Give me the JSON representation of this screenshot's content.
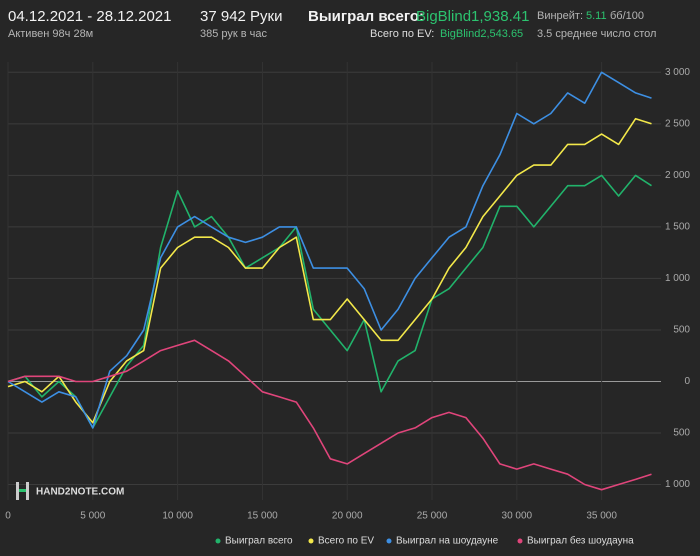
{
  "header": {
    "date_range": "04.12.2021 - 28.12.2021",
    "active": "Активен 98ч 28м",
    "hands": "37 942 Руки",
    "hands_per_hour": "385 рук в час",
    "won_total_label": "Выиграл всего:",
    "won_total_value": "BigBlind1,938.41",
    "ev_total_label": "Всего по EV:",
    "ev_total_value": "BigBlind2,543.65",
    "winrate_label": "Винрейт:",
    "winrate_value": "5.11",
    "winrate_unit": "бб/100",
    "tables": "3.5 среднее число стол"
  },
  "logo": "HAND2NOTE.COM",
  "chart_data": {
    "type": "line",
    "x": [
      0,
      1000,
      2000,
      3000,
      4000,
      5000,
      6000,
      7000,
      8000,
      9000,
      10000,
      11000,
      12000,
      13000,
      14000,
      15000,
      16000,
      17000,
      18000,
      19000,
      20000,
      21000,
      22000,
      23000,
      24000,
      25000,
      26000,
      27000,
      28000,
      29000,
      30000,
      31000,
      32000,
      33000,
      34000,
      35000,
      36000,
      37000,
      37942
    ],
    "series": [
      {
        "name": "Выиграл всего",
        "color": "#21b36b",
        "values": [
          0,
          50,
          -150,
          0,
          -150,
          -450,
          -150,
          150,
          350,
          1300,
          1850,
          1500,
          1600,
          1400,
          1100,
          1200,
          1300,
          1500,
          700,
          500,
          300,
          600,
          -100,
          200,
          300,
          800,
          900,
          1100,
          1300,
          1700,
          1700,
          1500,
          1700,
          1900,
          1900,
          2000,
          1800,
          2000,
          1900
        ]
      },
      {
        "name": "Всего по EV",
        "color": "#f3e84a",
        "values": [
          -50,
          0,
          -100,
          50,
          -200,
          -400,
          0,
          200,
          300,
          1100,
          1300,
          1400,
          1400,
          1300,
          1100,
          1100,
          1300,
          1400,
          600,
          600,
          800,
          600,
          400,
          400,
          600,
          800,
          1100,
          1300,
          1600,
          1800,
          2000,
          2100,
          2100,
          2300,
          2300,
          2400,
          2300,
          2550,
          2500
        ]
      },
      {
        "name": "Выиграл на шоудауне",
        "color": "#3d8fe3",
        "values": [
          0,
          -100,
          -200,
          -100,
          -150,
          -450,
          100,
          250,
          500,
          1200,
          1500,
          1600,
          1500,
          1400,
          1350,
          1400,
          1500,
          1500,
          1100,
          1100,
          1100,
          900,
          500,
          700,
          1000,
          1200,
          1400,
          1500,
          1900,
          2200,
          2600,
          2500,
          2600,
          2800,
          2700,
          3000,
          2900,
          2800,
          2750
        ]
      },
      {
        "name": "Выиграл без шоудауна",
        "color": "#e0457b",
        "values": [
          0,
          50,
          50,
          50,
          0,
          0,
          50,
          100,
          200,
          300,
          350,
          400,
          300,
          200,
          50,
          -100,
          -150,
          -200,
          -450,
          -750,
          -800,
          -700,
          -600,
          -500,
          -450,
          -350,
          -300,
          -350,
          -550,
          -800,
          -850,
          -800,
          -850,
          -900,
          -1000,
          -1050,
          -1000,
          -950,
          -900
        ]
      }
    ],
    "xlim": [
      0,
      38500
    ],
    "xticks": [
      0,
      {
        "value": 5000,
        "label": "5 000"
      },
      {
        "value": 10000,
        "label": "10 000"
      },
      {
        "value": 15000,
        "label": "15 000"
      },
      {
        "value": 20000,
        "label": "20 000"
      },
      {
        "value": 25000,
        "label": "25 000"
      },
      {
        "value": 30000,
        "label": "30 000"
      },
      {
        "value": 35000,
        "label": "35 000"
      }
    ],
    "ylim": [
      -1150,
      3100
    ],
    "yticks": [
      {
        "value": 3000,
        "label": "3 000"
      },
      {
        "value": 2500,
        "label": "2 500"
      },
      {
        "value": 2000,
        "label": "2 000"
      },
      {
        "value": 1500,
        "label": "1 500"
      },
      {
        "value": 1000,
        "label": "1 000"
      },
      500,
      0,
      {
        "value": -500,
        "label": "500"
      },
      {
        "value": -1000,
        "label": "1 000"
      }
    ],
    "grid": true
  }
}
